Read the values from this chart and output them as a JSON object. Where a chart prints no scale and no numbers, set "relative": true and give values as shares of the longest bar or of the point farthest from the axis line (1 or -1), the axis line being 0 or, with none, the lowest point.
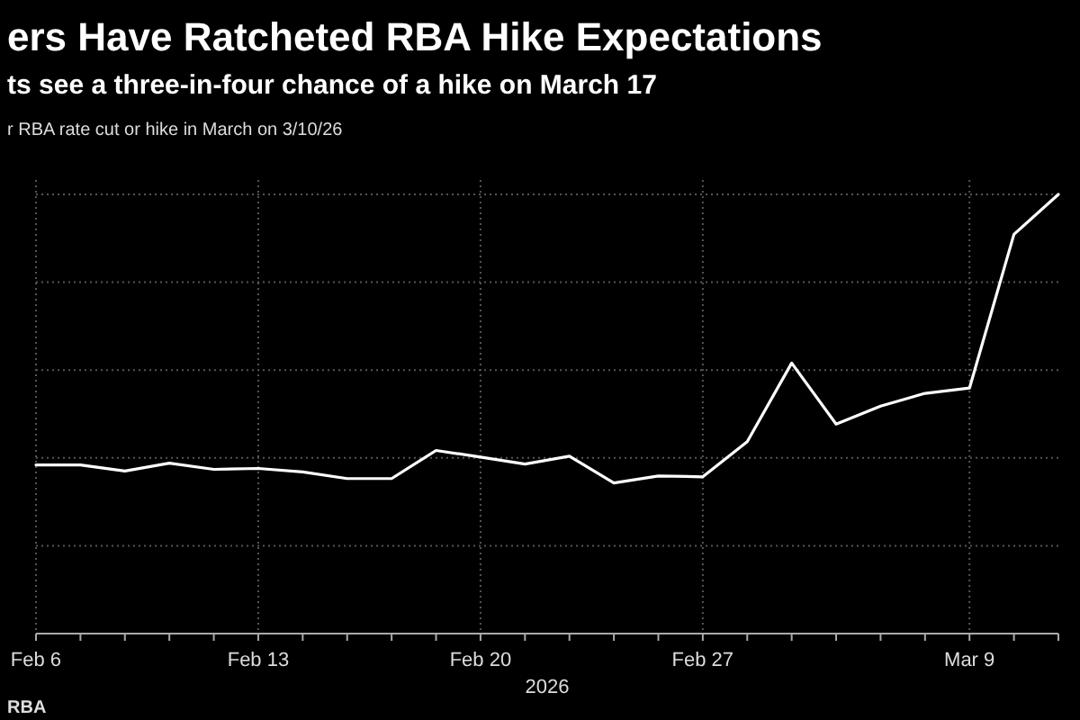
{
  "chart_data": {
    "type": "line",
    "title": "ers Have Ratcheted RBA Hike Expectations",
    "subtitle": "ts see a three-in-four chance of a hike on March 17",
    "ylabel": "r RBA rate cut or hike in March on 3/10/26",
    "xlabel": "2026",
    "annotations": [
      "RBA"
    ],
    "categories": [
      "Feb 6",
      null,
      null,
      null,
      null,
      "Feb 13",
      null,
      null,
      null,
      null,
      "Feb 20",
      null,
      null,
      null,
      null,
      "Feb 27",
      null,
      null,
      null,
      null,
      null,
      "Mar 9",
      null,
      null
    ],
    "relative": true,
    "grid": true,
    "color": "#ffffff",
    "values": [
      0.384,
      0.384,
      0.37,
      0.388,
      0.374,
      0.376,
      0.368,
      0.353,
      0.353,
      0.417,
      0.402,
      0.386,
      0.404,
      0.343,
      0.359,
      0.357,
      0.437,
      0.616,
      0.477,
      0.518,
      0.547,
      0.559,
      0.909,
      1
    ]
  }
}
